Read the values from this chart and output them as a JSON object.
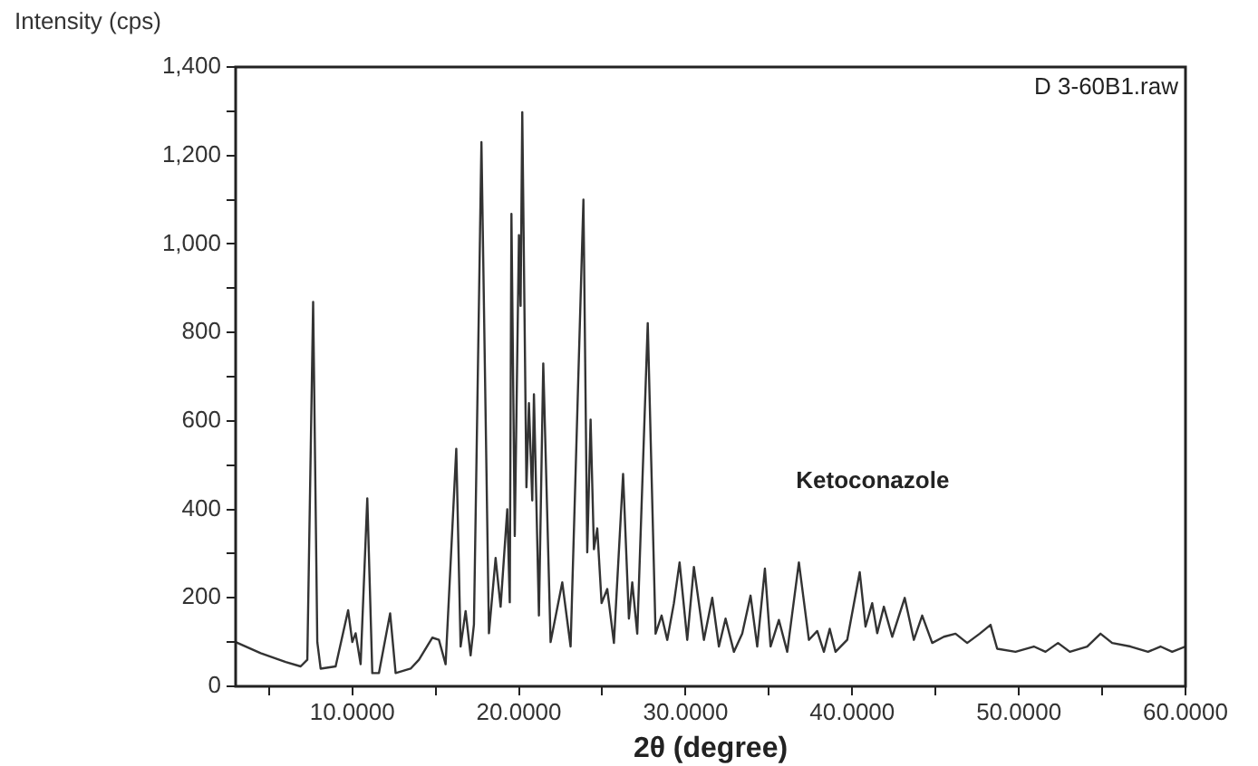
{
  "chart_data": {
    "type": "line",
    "xlabel": "2θ (degree)",
    "ylabel": "Intensity (cps)",
    "annotations": [
      "D 3-60B1.raw",
      "Ketoconazole"
    ],
    "xlim": [
      3,
      60
    ],
    "ylim": [
      0,
      1400
    ],
    "xticks": [
      {
        "value": 5,
        "label": null
      },
      {
        "value": 10,
        "label": "10.0000"
      },
      {
        "value": 15,
        "label": null
      },
      {
        "value": 20,
        "label": "20.0000"
      },
      {
        "value": 25,
        "label": null
      },
      {
        "value": 30,
        "label": "30.0000"
      },
      {
        "value": 35,
        "label": null
      },
      {
        "value": 40,
        "label": "40.0000"
      },
      {
        "value": 45,
        "label": null
      },
      {
        "value": 50,
        "label": "50.0000"
      },
      {
        "value": 55,
        "label": null
      },
      {
        "value": 60,
        "label": "60.0000"
      }
    ],
    "yticks": [
      0,
      {
        "value": 100,
        "label": null
      },
      200,
      {
        "value": 300,
        "label": null
      },
      400,
      {
        "value": 500,
        "label": null
      },
      600,
      {
        "value": 700,
        "label": null
      },
      800,
      {
        "value": 900,
        "label": null
      },
      {
        "value": 1000,
        "label": "1,000"
      },
      {
        "value": 1100,
        "label": null
      },
      {
        "value": 1200,
        "label": "1,200"
      },
      {
        "value": 1300,
        "label": null
      },
      {
        "value": 1400,
        "label": "1,400"
      }
    ],
    "grid": false,
    "legend": false,
    "marker": "none",
    "line_style": "solid",
    "series": [
      {
        "color": "#333333",
        "x": [
          3,
          4.5,
          6,
          6.9,
          7.3,
          7.65,
          7.9,
          8.1,
          9,
          9.75,
          10,
          10.2,
          10.5,
          10.9,
          11.2,
          11.6,
          12.27,
          12.6,
          13.5,
          14,
          14.8,
          15.2,
          15.6,
          16.24,
          16.5,
          16.8,
          17.1,
          17.3,
          17.75,
          18.2,
          18.6,
          18.9,
          19.3,
          19.45,
          19.55,
          19.75,
          20,
          20.1,
          20.2,
          20.45,
          20.6,
          20.8,
          20.9,
          21.2,
          21.46,
          21.9,
          22.6,
          23.1,
          23.87,
          24.1,
          24.3,
          24.5,
          24.7,
          24.96,
          25.3,
          25.7,
          26.25,
          26.6,
          26.8,
          27.1,
          27.73,
          28.2,
          28.56,
          28.9,
          29.3,
          29.64,
          30.1,
          30.5,
          31.1,
          31.6,
          32,
          32.4,
          32.9,
          33.4,
          33.9,
          34.3,
          34.76,
          35.1,
          35.6,
          36.1,
          36.8,
          37.4,
          37.9,
          38.3,
          38.65,
          39,
          39.7,
          40.45,
          40.8,
          41.2,
          41.5,
          41.9,
          42.4,
          43.15,
          43.7,
          44.2,
          44.8,
          45.5,
          46.2,
          46.9,
          47.65,
          48.3,
          48.7,
          49.8,
          50.9,
          51.6,
          52.35,
          53.06,
          54.1,
          54.9,
          55.6,
          56.7,
          57.75,
          58.5,
          59.2,
          60
        ],
        "values": [
          100,
          75,
          55,
          45,
          60,
          869,
          100,
          40,
          45,
          172,
          100,
          120,
          50,
          425,
          30,
          30,
          165,
          30,
          40,
          60,
          110,
          105,
          50,
          537,
          90,
          170,
          70,
          140,
          1230,
          120,
          290,
          180,
          400,
          190,
          1068,
          340,
          1020,
          860,
          1298,
          450,
          640,
          420,
          660,
          160,
          730,
          100,
          235,
          90,
          1100,
          303,
          603,
          310,
          357,
          188,
          220,
          98,
          480,
          153,
          235,
          119,
          821,
          119,
          160,
          105,
          188,
          280,
          105,
          270,
          105,
          200,
          90,
          153,
          78,
          119,
          205,
          90,
          266,
          90,
          150,
          78,
          280,
          105,
          125,
          78,
          130,
          78,
          105,
          258,
          135,
          188,
          120,
          180,
          112,
          200,
          105,
          160,
          98,
          112,
          119,
          98,
          119,
          139,
          85,
          78,
          90,
          78,
          98,
          78,
          90,
          119,
          98,
          90,
          78,
          90,
          78,
          90
        ]
      }
    ]
  }
}
